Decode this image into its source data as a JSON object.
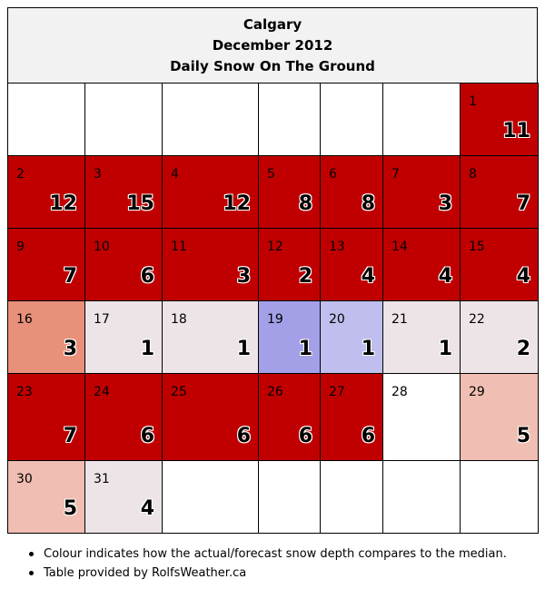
{
  "title": {
    "city": "Calgary",
    "month": "December 2012",
    "subtitle": "Daily Snow On The Ground"
  },
  "colors": {
    "much_above": "#c00000",
    "above": "#e8907a",
    "slightly_above": "#f0beb2",
    "near_median": "#ede4e7",
    "slightly_below": "#bfbeee",
    "below": "#a3a0e8",
    "empty": "#ffffff"
  },
  "weeks": [
    [
      null,
      null,
      null,
      null,
      null,
      null,
      {
        "day": "1",
        "snow": "11",
        "color": "#c00000"
      }
    ],
    [
      {
        "day": "2",
        "snow": "12",
        "color": "#c00000"
      },
      {
        "day": "3",
        "snow": "15",
        "color": "#c00000"
      },
      {
        "day": "4",
        "snow": "12",
        "color": "#c00000"
      },
      {
        "day": "5",
        "snow": "8",
        "color": "#c00000"
      },
      {
        "day": "6",
        "snow": "8",
        "color": "#c00000"
      },
      {
        "day": "7",
        "snow": "3",
        "color": "#c00000"
      },
      {
        "day": "8",
        "snow": "7",
        "color": "#c00000"
      }
    ],
    [
      {
        "day": "9",
        "snow": "7",
        "color": "#c00000"
      },
      {
        "day": "10",
        "snow": "6",
        "color": "#c00000"
      },
      {
        "day": "11",
        "snow": "3",
        "color": "#c00000"
      },
      {
        "day": "12",
        "snow": "2",
        "color": "#c00000"
      },
      {
        "day": "13",
        "snow": "4",
        "color": "#c00000"
      },
      {
        "day": "14",
        "snow": "4",
        "color": "#c00000"
      },
      {
        "day": "15",
        "snow": "4",
        "color": "#c00000"
      }
    ],
    [
      {
        "day": "16",
        "snow": "3",
        "color": "#e8907a"
      },
      {
        "day": "17",
        "snow": "1",
        "color": "#ede4e7"
      },
      {
        "day": "18",
        "snow": "1",
        "color": "#ede4e7"
      },
      {
        "day": "19",
        "snow": "1",
        "color": "#a3a0e8"
      },
      {
        "day": "20",
        "snow": "1",
        "color": "#bfbeee"
      },
      {
        "day": "21",
        "snow": "1",
        "color": "#ede4e7"
      },
      {
        "day": "22",
        "snow": "2",
        "color": "#ede4e7"
      }
    ],
    [
      {
        "day": "23",
        "snow": "7",
        "color": "#c00000"
      },
      {
        "day": "24",
        "snow": "6",
        "color": "#c00000"
      },
      {
        "day": "25",
        "snow": "6",
        "color": "#c00000"
      },
      {
        "day": "26",
        "snow": "6",
        "color": "#c00000"
      },
      {
        "day": "27",
        "snow": "6",
        "color": "#c00000"
      },
      {
        "day": "28",
        "snow": "",
        "color": "#ffffff"
      },
      {
        "day": "29",
        "snow": "5",
        "color": "#f0beb2"
      }
    ],
    [
      {
        "day": "30",
        "snow": "5",
        "color": "#f0beb2"
      },
      {
        "day": "31",
        "snow": "4",
        "color": "#ede4e7"
      },
      null,
      null,
      null,
      null,
      null
    ]
  ],
  "notes": [
    "Colour indicates how the actual/forecast snow depth compares to the median.",
    "Table provided by RolfsWeather.ca"
  ]
}
